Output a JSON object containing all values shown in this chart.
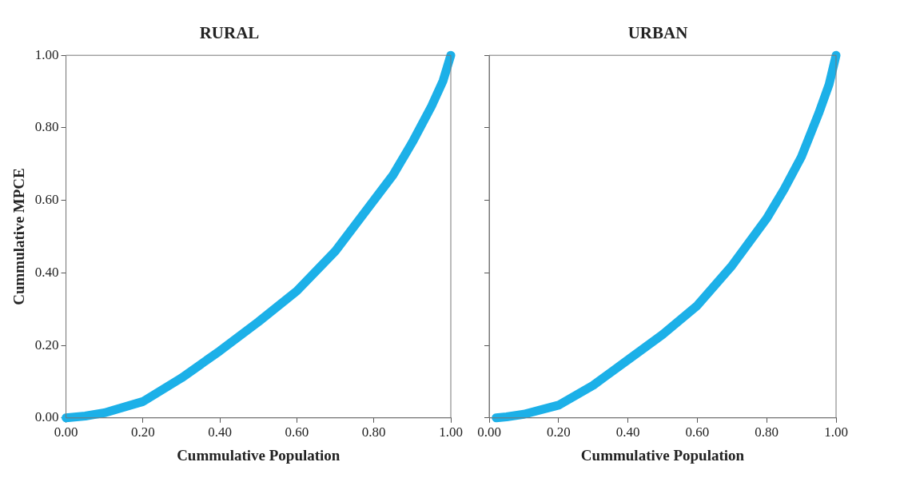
{
  "chart_data": [
    {
      "type": "line",
      "title": "RURAL",
      "xlabel": "Cummulative Population",
      "ylabel": "Cummulative MPCE",
      "xlim": [
        0,
        1
      ],
      "ylim": [
        0,
        1
      ],
      "xticks": [
        {
          "value": 0,
          "label": "0.00"
        },
        {
          "value": 0.2,
          "label": "0.20"
        },
        {
          "value": 0.4,
          "label": "0.40"
        },
        {
          "value": 0.6,
          "label": "0.60"
        },
        {
          "value": 0.8,
          "label": "0.80"
        },
        {
          "value": 1,
          "label": "1.00"
        }
      ],
      "yticks": [
        {
          "value": 0,
          "label": "0.00"
        },
        {
          "value": 0.2,
          "label": "0.20"
        },
        {
          "value": 0.4,
          "label": "0.40"
        },
        {
          "value": 0.6,
          "label": "0.60"
        },
        {
          "value": 0.8,
          "label": "0.80"
        },
        {
          "value": 1,
          "label": "1.00"
        }
      ],
      "grid": false,
      "legend": false,
      "marker": "none",
      "series": [
        {
          "color": "#1cb0e8",
          "x": [
            0,
            0.05,
            0.1,
            0.2,
            0.3,
            0.4,
            0.5,
            0.6,
            0.7,
            0.8,
            0.85,
            0.9,
            0.95,
            0.98,
            1
          ],
          "values": [
            0,
            0.005,
            0.014,
            0.045,
            0.11,
            0.185,
            0.265,
            0.35,
            0.46,
            0.6,
            0.67,
            0.76,
            0.86,
            0.93,
            1
          ]
        }
      ]
    },
    {
      "type": "line",
      "title": "URBAN",
      "xlabel": "Cummulative Population",
      "xlim": [
        0,
        1
      ],
      "ylim": [
        0,
        1
      ],
      "xticks": [
        {
          "value": 0,
          "label": "0.00"
        },
        {
          "value": 0.2,
          "label": "0.20"
        },
        {
          "value": 0.4,
          "label": "0.40"
        },
        {
          "value": 0.6,
          "label": "0.60"
        },
        {
          "value": 0.8,
          "label": "0.80"
        },
        {
          "value": 1,
          "label": "1.00"
        }
      ],
      "yticks": [
        {
          "value": 0,
          "label": null
        },
        {
          "value": 0.2,
          "label": null
        },
        {
          "value": 0.4,
          "label": null
        },
        {
          "value": 0.6,
          "label": null
        },
        {
          "value": 0.8,
          "label": null
        },
        {
          "value": 1,
          "label": null
        }
      ],
      "tick_labels": "x",
      "grid": false,
      "legend": false,
      "marker": "none",
      "series": [
        {
          "color": "#1cb0e8",
          "x": [
            0.02,
            0.05,
            0.1,
            0.2,
            0.3,
            0.4,
            0.5,
            0.6,
            0.7,
            0.8,
            0.85,
            0.9,
            0.95,
            0.98,
            1
          ],
          "values": [
            0,
            0.003,
            0.01,
            0.035,
            0.09,
            0.16,
            0.23,
            0.31,
            0.42,
            0.55,
            0.63,
            0.72,
            0.84,
            0.92,
            1
          ]
        }
      ]
    }
  ]
}
